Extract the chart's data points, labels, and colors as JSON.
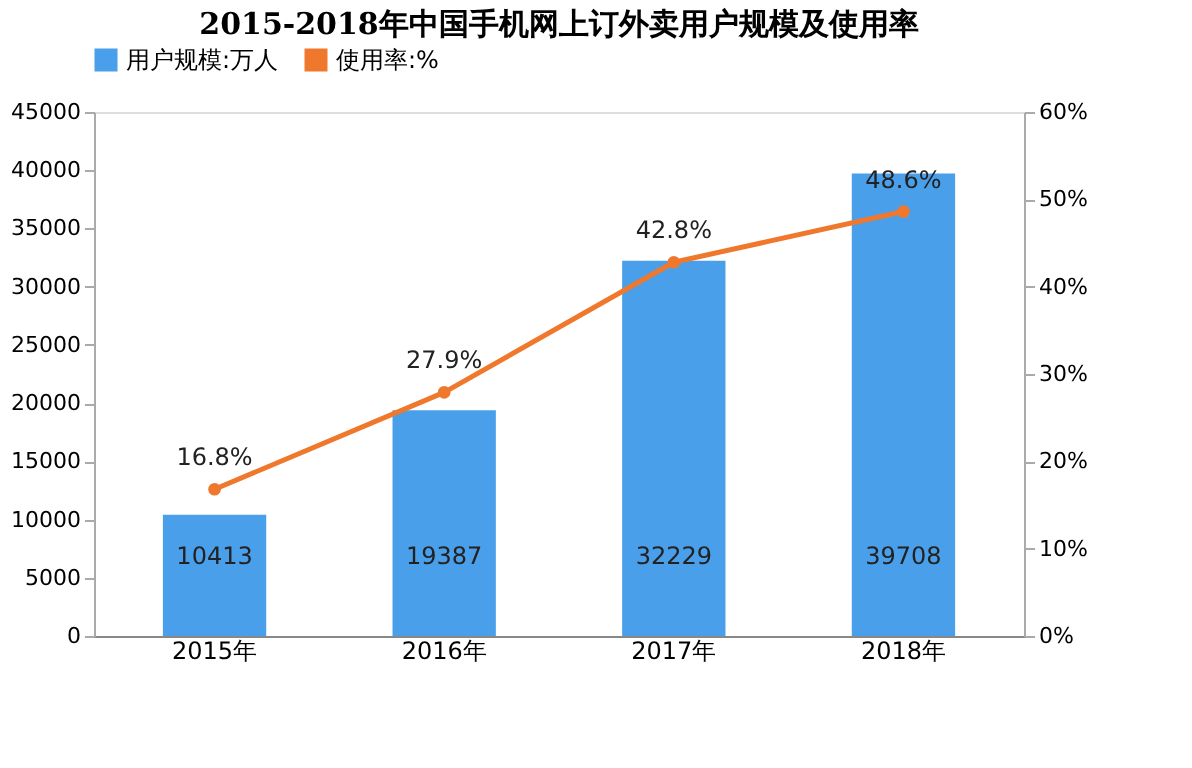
{
  "chart_data": {
    "type": "bar",
    "title": "2015-2018年中国手机网上订外卖用户规模及使用率",
    "categories": [
      "2015年",
      "2016年",
      "2017年",
      "2018年"
    ],
    "series": [
      {
        "name": "用户规模:万人",
        "color": "#4a9fea",
        "values": [
          10413,
          19387,
          32229,
          39708
        ],
        "value_labels": [
          "10413",
          "19387",
          "32229",
          "39708"
        ]
      },
      {
        "name": "使用率:%",
        "type": "line",
        "axis": "y2",
        "color": "#f0782d",
        "values": [
          16.8,
          27.9,
          42.8,
          48.6
        ],
        "value_labels": [
          "16.8%",
          "27.9%",
          "42.8%",
          "48.6%"
        ]
      }
    ],
    "ylim": [
      0,
      45000
    ],
    "yticks": [
      0,
      5000,
      10000,
      15000,
      20000,
      25000,
      30000,
      35000,
      40000,
      45000
    ],
    "y2lim": [
      0,
      60
    ],
    "y2ticks": [
      {
        "value": 0,
        "label": "0%"
      },
      {
        "value": 10,
        "label": "10%"
      },
      {
        "value": 20,
        "label": "20%"
      },
      {
        "value": 30,
        "label": "30%"
      },
      {
        "value": 40,
        "label": "40%"
      },
      {
        "value": 50,
        "label": "50%"
      },
      {
        "value": 60,
        "label": "60%"
      }
    ],
    "marker": "circle",
    "legend": "top",
    "grid": false
  }
}
